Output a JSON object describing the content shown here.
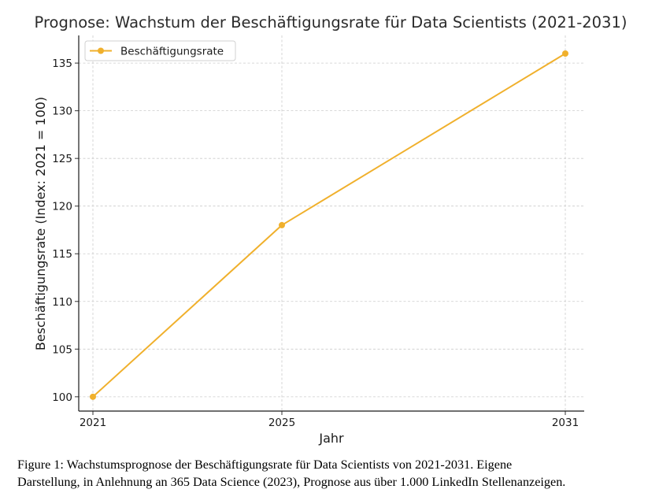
{
  "chart_data": {
    "type": "line",
    "title": "Prognose: Wachstum der Beschäftigungsrate für Data Scientists (2021-2031)",
    "xlabel": "Jahr",
    "ylabel": "Beschäftigungsrate (Index: 2021 = 100)",
    "x": [
      2021,
      2025,
      2031
    ],
    "x_ticks": [
      "2021",
      "2025",
      "2031"
    ],
    "xlim": [
      2020.7,
      2031.4
    ],
    "ylim": [
      98.5,
      137.9
    ],
    "y_ticks": [
      100,
      105,
      110,
      115,
      120,
      125,
      130,
      135
    ],
    "y_tick_labels": [
      "100",
      "105",
      "110",
      "115",
      "120",
      "125",
      "130",
      "135"
    ],
    "series": [
      {
        "name": "Beschäftigungsrate",
        "values": [
          100,
          118,
          136
        ],
        "color": "#f0b02c"
      }
    ],
    "grid": true,
    "legend_position": "top-left"
  },
  "caption": {
    "line1": "Figure 1: Wachstumsprognose der Beschäftigungsrate für Data Scientists von 2021-2031. Eigene",
    "line2": "Darstellung, in Anlehnung an 365 Data Science (2023), Prognose aus über 1.000 LinkedIn Stellenanzeigen."
  }
}
